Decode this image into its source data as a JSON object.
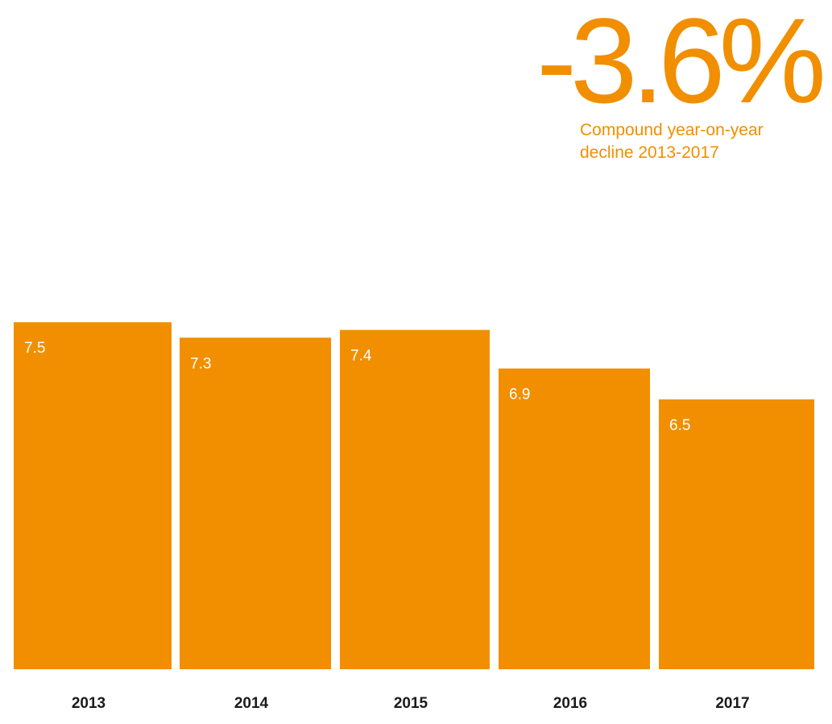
{
  "headline": {
    "value": "-3.6%",
    "caption_line1": "Compound year-on-year",
    "caption_line2": "decline 2013-2017"
  },
  "colors": {
    "bar": "#f18f00",
    "accent_text": "#f18f00",
    "bar_label": "#ffffff",
    "tick_label": "#1a1a1a"
  },
  "chart_data": {
    "type": "bar",
    "categories": [
      "2013",
      "2014",
      "2015",
      "2016",
      "2017"
    ],
    "values": [
      7.5,
      7.3,
      7.4,
      6.9,
      6.5
    ],
    "value_labels": [
      "7.5",
      "7.3",
      "7.4",
      "6.9",
      "6.5"
    ],
    "title": "",
    "xlabel": "",
    "ylabel": "",
    "grid": false,
    "legend": "none"
  }
}
